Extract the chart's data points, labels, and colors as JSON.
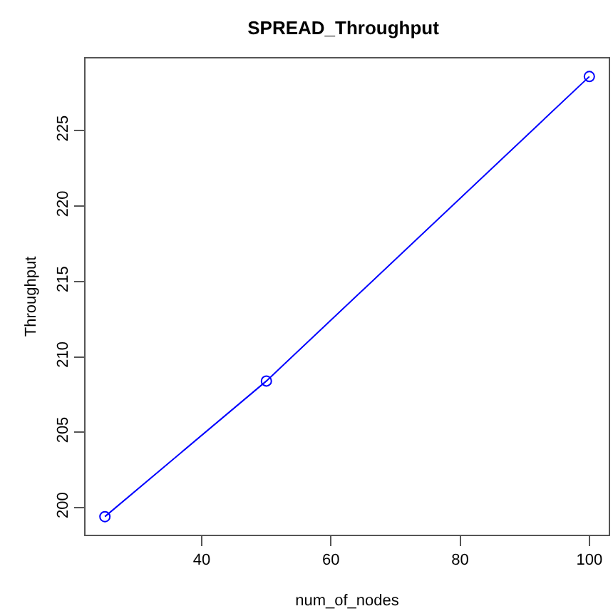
{
  "chart_data": {
    "type": "line",
    "title": "SPREAD_Throughput",
    "xlabel": "num_of_nodes",
    "ylabel": "Throughput",
    "x": [
      25,
      50,
      100
    ],
    "series": [
      {
        "color": "#0000ff",
        "values": [
          199.4,
          208.4,
          228.6
        ]
      }
    ],
    "marker": "circle",
    "line_style": "solid",
    "legend": false,
    "xlim": [
      22,
      103
    ],
    "xticks": [
      40,
      60,
      80,
      100
    ],
    "ylim": [
      198.2,
      229.8
    ],
    "yticks": [
      200,
      205,
      210,
      215,
      220,
      225
    ]
  }
}
